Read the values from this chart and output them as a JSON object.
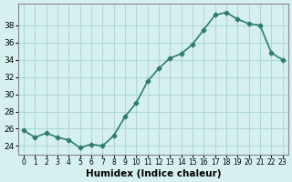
{
  "x": [
    0,
    1,
    2,
    3,
    4,
    5,
    6,
    7,
    8,
    9,
    10,
    11,
    12,
    13,
    14,
    15,
    16,
    17,
    18,
    19,
    20,
    21,
    22,
    23
  ],
  "y": [
    25.8,
    25.0,
    25.5,
    25.0,
    24.7,
    23.8,
    24.2,
    24.0,
    25.2,
    27.4,
    29.0,
    31.5,
    33.0,
    34.2,
    34.7,
    35.8,
    37.5,
    39.2,
    39.5,
    38.7,
    38.2,
    38.0,
    34.8,
    34.0
  ],
  "xlabel": "Humidex (Indice chaleur)",
  "ylabel": "",
  "title": "",
  "bg_color": "#d6f0f0",
  "line_color": "#2e7d6e",
  "marker_color": "#2e7d6e",
  "grid_color": "#b0d8d8",
  "yticks": [
    24,
    26,
    28,
    30,
    32,
    34,
    36,
    38
  ],
  "ylim": [
    23.0,
    40.5
  ],
  "xlim": [
    -0.5,
    23.5
  ]
}
